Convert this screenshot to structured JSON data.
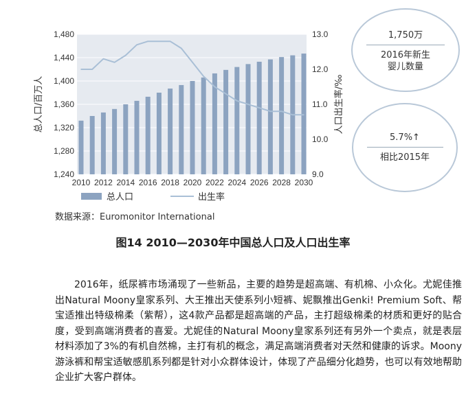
{
  "chart_data": {
    "type": "bar+line",
    "categories": [
      "2010",
      "2011",
      "2012",
      "2013",
      "2014",
      "2015",
      "2016",
      "2017",
      "2018",
      "2019",
      "2020",
      "2021",
      "2022",
      "2023",
      "2024",
      "2025",
      "2026",
      "2027",
      "2028",
      "2029",
      "2030"
    ],
    "xticks": [
      "2010",
      "2012",
      "2014",
      "2016",
      "2018",
      "2020",
      "2022",
      "2024",
      "2026",
      "2028",
      "2030"
    ],
    "series": [
      {
        "name": "总人口",
        "type": "bar",
        "axis": "left",
        "color": "#8ca3c0",
        "values": [
          1332,
          1340,
          1346,
          1352,
          1360,
          1366,
          1373,
          1380,
          1387,
          1393,
          1400,
          1406,
          1413,
          1419,
          1424,
          1429,
          1433,
          1437,
          1441,
          1444,
          1447
        ]
      },
      {
        "name": "出生率",
        "type": "line",
        "axis": "right",
        "color": "#a9bfd6",
        "values": [
          12.0,
          12.0,
          12.3,
          12.2,
          12.4,
          12.7,
          12.8,
          12.8,
          12.8,
          12.6,
          12.2,
          11.8,
          11.5,
          11.3,
          11.1,
          11.0,
          10.9,
          10.8,
          10.8,
          10.7,
          10.7
        ]
      }
    ],
    "yleft": {
      "label": "总人口/百万人",
      "lim": [
        1240,
        1480
      ],
      "ticks": [
        "1,240",
        "1,280",
        "1,320",
        "1,360",
        "1,400",
        "1,440",
        "1,480"
      ],
      "tick_values": [
        1240,
        1280,
        1320,
        1360,
        1400,
        1440,
        1480
      ]
    },
    "yright": {
      "label": "人口出生率/‰",
      "lim": [
        9.0,
        13.0
      ],
      "ticks": [
        "9.0",
        "10.0",
        "11.0",
        "12.0",
        "13.0"
      ],
      "tick_values": [
        9,
        10,
        11,
        12,
        13
      ]
    },
    "grid": true,
    "legend": {
      "placement": "bottom-left",
      "entries": [
        "总人口",
        "出生率"
      ]
    }
  },
  "callouts": [
    {
      "value": "1,750万",
      "label_lines": [
        "2016年新生",
        "婴儿数量"
      ]
    },
    {
      "value": "5.7%↑",
      "label_lines": [
        "相比2015年"
      ]
    }
  ],
  "source": "数据来源：Euromonitor International",
  "caption": "图14  2010—2030年中国总人口及人口出生率",
  "paragraph": "2016年，纸尿裤市场涌现了一些新品，主要的趋势是超高端、有机棉、小众化。尤妮佳推出Natural Moony皇家系列、大王推出天使系列小短裤、妮飘推出Genki! Premium Soft、帮宝适推出特级棉柔（紫帮），这4款产品都是超高端的产品，主打超级棉柔的材质和更好的贴合度，受到高端消费者的喜爱。尤妮佳的Natural Moony皇家系列还有另外一个卖点，就是表层材料添加了3%的有机自然棉，主打有机的概念，满足高端消费者对天然和健康的诉求。Moony游泳裤和帮宝适敏感肌系列都是针对小众群体设计，体现了产品细分化趋势，也可以有效地帮助企业扩大客户群体。"
}
